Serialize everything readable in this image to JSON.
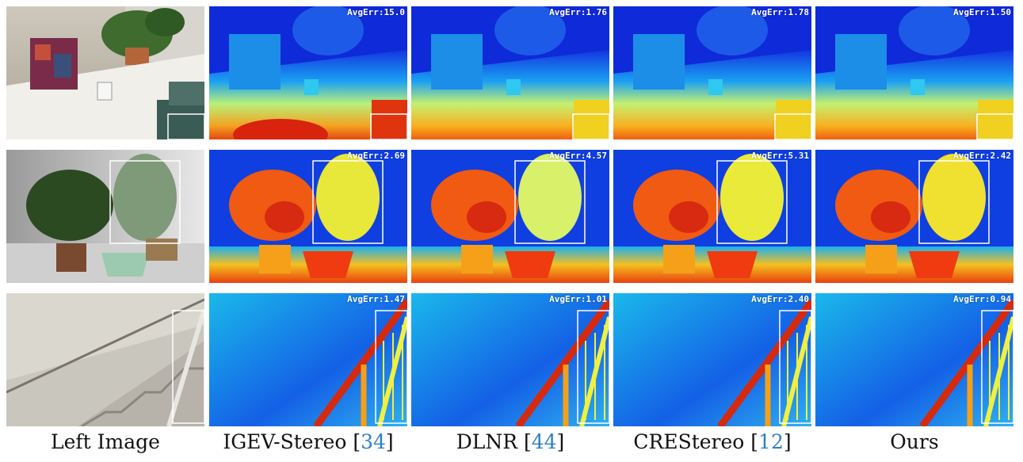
{
  "columns": [
    {
      "name": "Left Image",
      "ref": ""
    },
    {
      "name": "IGEV-Stereo",
      "ref": "34"
    },
    {
      "name": "DLNR",
      "ref": "44"
    },
    {
      "name": "CREStereo",
      "ref": "12"
    },
    {
      "name": "Ours",
      "ref": ""
    }
  ],
  "rows": [
    {
      "errors": [
        "",
        "AvgErr:15.0",
        "AvgErr:1.76",
        "AvgErr:1.78",
        "AvgErr:1.50"
      ]
    },
    {
      "errors": [
        "",
        "AvgErr:2.69",
        "AvgErr:4.57",
        "AvgErr:5.31",
        "AvgErr:2.42"
      ]
    },
    {
      "errors": [
        "",
        "AvgErr:1.47",
        "AvgErr:1.01",
        "AvgErr:2.40",
        "AvgErr:0.94"
      ]
    }
  ],
  "colors": {
    "reference_link": "#2f7fc8",
    "disparity_low": "#0a1fd8",
    "disparity_high": "#d21a0e"
  }
}
